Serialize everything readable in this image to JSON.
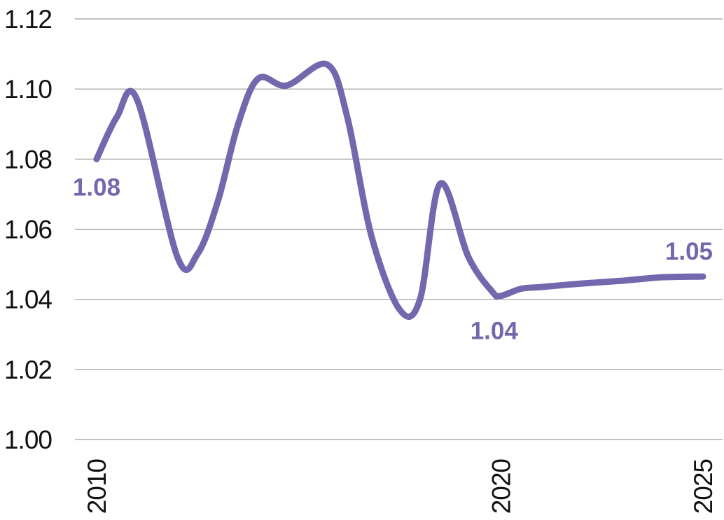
{
  "chart_data": {
    "type": "line",
    "title": "",
    "xlabel": "",
    "ylabel": "",
    "x": [
      2010,
      2010.5,
      2011,
      2012,
      2012.5,
      2013,
      2013.5,
      2014,
      2014.7,
      2015.7,
      2016.2,
      2016.8,
      2017.5,
      2018,
      2018.5,
      2019.2,
      2019.8,
      2020,
      2020.5,
      2021,
      2022,
      2023,
      2024,
      2025
    ],
    "series": [
      {
        "values": [
          1.08,
          1.092,
          1.097,
          1.052,
          1.053,
          1.068,
          1.09,
          1.103,
          1.101,
          1.107,
          1.092,
          1.058,
          1.037,
          1.04,
          1.073,
          1.052,
          1.042,
          1.041,
          1.043,
          1.0435,
          1.0445,
          1.0453,
          1.0463,
          1.0465
        ]
      }
    ],
    "color": "#7367ad",
    "xlim": [
      2010,
      2025
    ],
    "ylim": [
      1.0,
      1.12
    ],
    "y_ticks": [
      "1.12",
      "1.10",
      "1.08",
      "1.06",
      "1.04",
      "1.02",
      "1.00"
    ],
    "y_tick_values": [
      1.12,
      1.1,
      1.08,
      1.06,
      1.04,
      1.02,
      1.0
    ],
    "x_ticks": [
      "2010",
      "2020",
      "2025"
    ],
    "x_tick_values": [
      2010,
      2020,
      2025
    ],
    "grid": "horizontal",
    "annotations": [
      {
        "text": "1.08",
        "x": 2010,
        "y": 1.08,
        "placement": "below"
      },
      {
        "text": "1.04",
        "x": 2019.8,
        "y": 1.041,
        "placement": "below"
      },
      {
        "text": "1.05",
        "x": 2025,
        "y": 1.0465,
        "placement": "above"
      }
    ]
  }
}
